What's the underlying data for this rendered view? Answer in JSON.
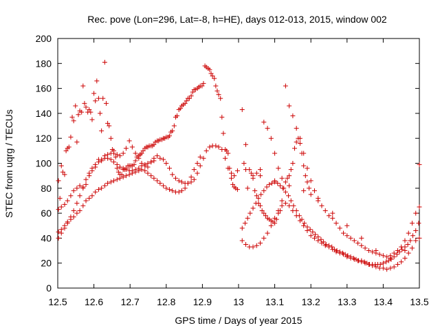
{
  "chart_data": {
    "type": "scatter",
    "title": "Rec. pove (Lon=296, Lat=-8, h=HE), days 012-013, 2015, window 002",
    "xlabel": "GPS time / Days of year 2015",
    "ylabel": "STEC from uqrg / TECUs",
    "xlim": [
      12.5,
      13.5
    ],
    "ylim": [
      0,
      200
    ],
    "xticks": [
      "12.5",
      "12.6",
      "12.7",
      "12.8",
      "12.9",
      "13",
      "13.1",
      "13.2",
      "13.3",
      "13.4",
      "13.5"
    ],
    "yticks": [
      "0",
      "20",
      "40",
      "60",
      "80",
      "100",
      "120",
      "140",
      "160",
      "180",
      "200"
    ],
    "grid": false,
    "legend": "none",
    "marker": "plus",
    "color": "#cc0000",
    "series": [
      {
        "x": [
          12.502,
          12.506,
          12.51,
          12.514,
          12.519,
          12.523,
          12.527,
          12.531,
          12.536,
          12.54,
          12.544,
          12.549,
          12.553,
          12.557,
          12.561,
          12.566,
          12.57,
          12.574,
          12.578,
          12.583,
          12.587,
          12.591,
          12.595,
          12.6,
          12.604,
          12.608,
          12.613,
          12.617,
          12.621,
          12.625,
          12.63,
          12.634,
          12.638,
          12.642,
          12.647,
          12.651,
          12.655,
          12.66,
          12.664,
          12.668,
          12.672,
          12.677,
          12.681,
          12.685,
          12.689,
          12.694,
          12.698,
          12.702,
          12.706,
          12.711,
          12.715,
          12.719,
          12.724,
          12.728,
          12.732,
          12.736,
          12.741,
          12.745,
          12.749,
          12.753,
          12.758,
          12.762,
          12.766,
          12.77,
          12.775,
          12.779,
          12.783,
          12.788,
          12.792,
          12.796,
          12.8,
          12.805,
          12.809,
          12.813,
          12.817,
          12.822,
          12.826,
          12.83,
          12.835,
          12.839,
          12.843,
          12.847,
          12.852,
          12.856,
          12.86,
          12.864,
          12.869,
          12.873,
          12.877,
          12.881,
          12.886,
          12.89,
          12.894,
          12.899,
          12.903,
          12.907,
          12.911,
          12.916,
          12.92,
          12.924,
          12.928,
          12.933,
          12.937,
          12.941,
          12.945,
          12.95,
          12.954,
          12.958,
          12.963,
          12.967,
          12.971,
          12.975,
          12.98,
          12.984,
          12.988,
          12.992,
          12.997
        ],
        "y": [
          86,
          72,
          98,
          93,
          91,
          110,
          112,
          113,
          121,
          137,
          134,
          146,
          117,
          139,
          142,
          141,
          162,
          148,
          145,
          141,
          143,
          141,
          135,
          156,
          150,
          166,
          152,
          140,
          126,
          152,
          181,
          148,
          132,
          130,
          120,
          111,
          110,
          105,
          96,
          93,
          91,
          91,
          95,
          95,
          96,
          98,
          98,
          98,
          98,
          99,
          102,
          105,
          106,
          107,
          108,
          110,
          112,
          113,
          113,
          114,
          114,
          114,
          115,
          117,
          118,
          118,
          119,
          119,
          120,
          120,
          121,
          121,
          122,
          125,
          126,
          130,
          137,
          138,
          143,
          144,
          146,
          147,
          148,
          150,
          152,
          152,
          154,
          157,
          159,
          159,
          160,
          161,
          162,
          162,
          164,
          178,
          177,
          176,
          175,
          172,
          170,
          168,
          162,
          158,
          155,
          152,
          137,
          124,
          111,
          110,
          108,
          96,
          88,
          83,
          81,
          80,
          79
        ]
      },
      {
        "x": [
          12.502,
          12.51,
          12.519,
          12.527,
          12.536,
          12.544,
          12.553,
          12.561,
          12.57,
          12.578,
          12.587,
          12.595,
          12.604,
          12.613,
          12.621,
          12.63,
          12.638,
          12.647,
          12.655,
          12.664,
          12.672,
          12.681,
          12.689,
          12.698,
          12.706,
          12.715,
          12.724,
          12.732,
          12.741,
          12.749,
          12.758,
          12.766,
          12.775,
          12.783,
          12.792,
          12.8,
          12.809,
          12.817,
          12.826,
          12.835,
          12.843,
          12.852,
          12.86,
          12.869,
          12.877,
          12.886,
          12.894,
          12.903,
          12.911,
          12.92,
          12.928,
          12.937,
          12.945,
          12.954,
          12.963,
          12.971,
          12.98,
          12.988,
          12.997
        ],
        "y": [
          63,
          65,
          67,
          70,
          74,
          78,
          80,
          82,
          80,
          83,
          90,
          94,
          97,
          103,
          102,
          106,
          107,
          108,
          108,
          107,
          106,
          108,
          112,
          118,
          113,
          108,
          104,
          100,
          98,
          97,
          101,
          104,
          106,
          104,
          103,
          100,
          96,
          91,
          88,
          86,
          85,
          84,
          84,
          85,
          87,
          92,
          98,
          104,
          110,
          113,
          114,
          114,
          113,
          111,
          104,
          96,
          92,
          90,
          94
        ]
      },
      {
        "x": [
          12.502,
          12.51,
          12.519,
          12.527,
          12.536,
          12.544,
          12.553,
          12.561,
          12.57,
          12.578,
          12.587,
          12.595,
          12.604,
          12.613,
          12.621,
          12.63,
          12.638,
          12.647,
          12.655,
          12.664,
          12.672,
          12.681,
          12.689,
          12.698,
          12.706,
          12.715,
          12.724,
          12.732,
          12.741,
          12.749,
          12.758,
          12.766,
          12.775,
          12.783,
          12.792,
          12.8,
          12.809,
          12.817,
          12.826,
          12.835,
          12.843,
          12.852,
          12.86,
          12.869,
          12.877,
          12.886,
          12.894
        ],
        "y": [
          40,
          44,
          48,
          52,
          55,
          57,
          60,
          62,
          66,
          70,
          72,
          74,
          77,
          79,
          80,
          82,
          84,
          85,
          86,
          87,
          88,
          89,
          90,
          91,
          92,
          93,
          94,
          95,
          94,
          92,
          90,
          88,
          86,
          84,
          82,
          80,
          79,
          78,
          77,
          77,
          78,
          80,
          84,
          89,
          95,
          100,
          105
        ]
      },
      {
        "x": [
          12.502,
          12.51,
          12.519,
          12.527,
          12.536,
          12.544,
          12.553,
          12.561,
          12.57,
          12.578,
          12.587,
          12.595,
          12.604,
          12.613,
          12.621,
          12.63,
          12.638,
          12.647,
          12.655,
          12.664,
          12.672,
          12.681,
          12.689,
          12.698,
          12.706,
          12.715,
          12.724,
          12.732,
          12.741,
          12.749,
          12.758,
          12.766
        ],
        "y": [
          45,
          47,
          50,
          53,
          57,
          62,
          68,
          74,
          81,
          87,
          92,
          96,
          99,
          101,
          103,
          104,
          104,
          103,
          101,
          99,
          97,
          96,
          95,
          94,
          94,
          95,
          96,
          98,
          99,
          100,
          101,
          102
        ]
      },
      {
        "x": [
          13.01,
          13.015,
          13.02,
          13.025,
          13.03,
          13.035,
          13.04,
          13.045,
          13.05,
          13.055,
          13.06,
          13.065,
          13.07,
          13.075,
          13.08,
          13.085,
          13.09,
          13.095,
          13.1,
          13.105,
          13.11,
          13.115,
          13.12,
          13.125,
          13.13,
          13.135,
          13.14,
          13.145,
          13.15,
          13.155,
          13.16,
          13.165,
          13.17,
          13.175,
          13.18,
          13.185,
          13.19,
          13.195,
          13.2
        ],
        "y": [
          143,
          100,
          115,
          80,
          95,
          92,
          88,
          78,
          74,
          68,
          66,
          62,
          60,
          58,
          56,
          55,
          54,
          53,
          52,
          55,
          60,
          62,
          70,
          80,
          85,
          88,
          90,
          95,
          100,
          112,
          117,
          120,
          116,
          108,
          98,
          90,
          85,
          80,
          75
        ]
      },
      {
        "x": [
          13.01,
          13.018,
          13.025,
          13.032,
          13.04,
          13.048,
          13.055,
          13.062,
          13.07,
          13.078,
          13.085,
          13.092,
          13.1,
          13.108,
          13.115,
          13.122,
          13.13,
          13.138,
          13.145,
          13.152,
          13.16,
          13.168,
          13.175,
          13.182,
          13.19,
          13.198,
          13.205,
          13.212,
          13.22,
          13.228,
          13.235,
          13.242,
          13.25,
          13.258,
          13.265,
          13.272,
          13.28,
          13.288,
          13.295,
          13.302,
          13.31,
          13.318,
          13.325,
          13.332,
          13.34,
          13.348,
          13.355,
          13.362,
          13.37,
          13.378,
          13.385,
          13.392,
          13.4,
          13.408,
          13.415,
          13.422,
          13.43,
          13.438,
          13.445,
          13.452,
          13.46,
          13.468,
          13.475,
          13.482,
          13.49,
          13.498
        ],
        "y": [
          48,
          52,
          56,
          60,
          64,
          68,
          72,
          75,
          78,
          81,
          83,
          84,
          85,
          84,
          82,
          80,
          77,
          74,
          70,
          66,
          62,
          58,
          55,
          52,
          49,
          47,
          45,
          43,
          41,
          39,
          37,
          35,
          34,
          33,
          31,
          30,
          29,
          28,
          27,
          26,
          25,
          24,
          23,
          22,
          22,
          21,
          20,
          19,
          19,
          19,
          19,
          19,
          20,
          21,
          22,
          23,
          25,
          27,
          29,
          31,
          33,
          35,
          38,
          42,
          46,
          52
        ]
      },
      {
        "x": [
          13.01,
          13.02,
          13.03,
          13.04,
          13.05,
          13.06,
          13.07,
          13.08,
          13.09,
          13.1,
          13.11,
          13.12,
          13.13,
          13.14,
          13.15,
          13.16,
          13.17,
          13.18,
          13.19,
          13.2,
          13.21,
          13.22,
          13.23,
          13.24,
          13.25,
          13.26,
          13.27,
          13.28,
          13.29,
          13.3,
          13.31,
          13.32,
          13.33,
          13.34,
          13.35,
          13.36,
          13.37,
          13.38,
          13.39,
          13.4,
          13.41,
          13.42,
          13.43,
          13.44,
          13.45,
          13.46,
          13.47,
          13.48,
          13.49,
          13.5
        ],
        "y": [
          38,
          35,
          33,
          33,
          34,
          36,
          40,
          44,
          50,
          56,
          62,
          66,
          68,
          66,
          62,
          58,
          54,
          50,
          46,
          42,
          40,
          38,
          36,
          34,
          33,
          31,
          29,
          28,
          27,
          25,
          24,
          23,
          22,
          21,
          20,
          19,
          18,
          17,
          16,
          16,
          15,
          16,
          17,
          19,
          21,
          24,
          28,
          32,
          38,
          40
        ]
      },
      {
        "x": [
          13.04,
          13.05,
          13.06,
          13.07,
          13.08,
          13.09,
          13.1,
          13.11,
          13.12,
          13.13,
          13.14,
          13.15,
          13.16,
          13.17,
          13.18,
          13.19,
          13.2,
          13.21,
          13.22,
          13.23,
          13.24,
          13.25,
          13.26,
          13.27,
          13.28,
          13.29,
          13.3,
          13.31,
          13.32,
          13.33,
          13.34,
          13.35,
          13.36,
          13.37,
          13.38,
          13.39,
          13.4,
          13.41,
          13.42,
          13.43,
          13.44,
          13.45,
          13.46,
          13.47,
          13.48,
          13.49,
          13.5
        ],
        "y": [
          90,
          92,
          95,
          133,
          128,
          120,
          108,
          96,
          88,
          162,
          146,
          138,
          128,
          120,
          108,
          96,
          86,
          78,
          72,
          66,
          62,
          58,
          56,
          52,
          48,
          44,
          42,
          40,
          38,
          36,
          34,
          32,
          30,
          29,
          28,
          27,
          26,
          25,
          26,
          28,
          30,
          33,
          38,
          44,
          52,
          60,
          99
        ]
      },
      {
        "x": [
          13.02,
          13.06,
          13.1,
          13.14,
          13.18,
          13.22,
          13.26,
          13.3,
          13.34,
          13.38,
          13.42,
          13.46,
          13.5
        ],
        "y": [
          95,
          90,
          86,
          82,
          78,
          70,
          60,
          50,
          40,
          30,
          24,
          30,
          65
        ]
      }
    ]
  }
}
